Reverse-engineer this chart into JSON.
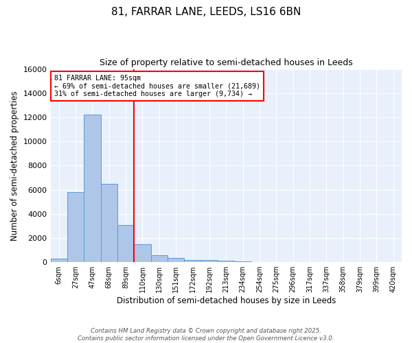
{
  "title_line1": "81, FARRAR LANE, LEEDS, LS16 6BN",
  "title_line2": "Size of property relative to semi-detached houses in Leeds",
  "xlabel": "Distribution of semi-detached houses by size in Leeds",
  "ylabel": "Number of semi-detached properties",
  "categories": [
    "6sqm",
    "27sqm",
    "47sqm",
    "68sqm",
    "89sqm",
    "110sqm",
    "130sqm",
    "151sqm",
    "172sqm",
    "192sqm",
    "213sqm",
    "234sqm",
    "254sqm",
    "275sqm",
    "296sqm",
    "317sqm",
    "337sqm",
    "358sqm",
    "379sqm",
    "399sqm",
    "420sqm"
  ],
  "bar_heights": [
    300,
    5800,
    12200,
    6500,
    3050,
    1500,
    600,
    350,
    200,
    150,
    100,
    60,
    30,
    0,
    0,
    0,
    0,
    0,
    0,
    0,
    0
  ],
  "bar_color": "#aec6e8",
  "bar_edge_color": "#5b9bd5",
  "vline_pos": 4.5,
  "vline_color": "red",
  "annotation_title": "81 FARRAR LANE: 95sqm",
  "annotation_line1": "← 69% of semi-detached houses are smaller (21,689)",
  "annotation_line2": "31% of semi-detached houses are larger (9,734) →",
  "ylim": [
    0,
    16000
  ],
  "yticks": [
    0,
    2000,
    4000,
    6000,
    8000,
    10000,
    12000,
    14000,
    16000
  ],
  "background_color": "#e8f0fb",
  "grid_color": "white",
  "footer_line1": "Contains HM Land Registry data © Crown copyright and database right 2025.",
  "footer_line2": "Contains public sector information licensed under the Open Government Licence v3.0."
}
